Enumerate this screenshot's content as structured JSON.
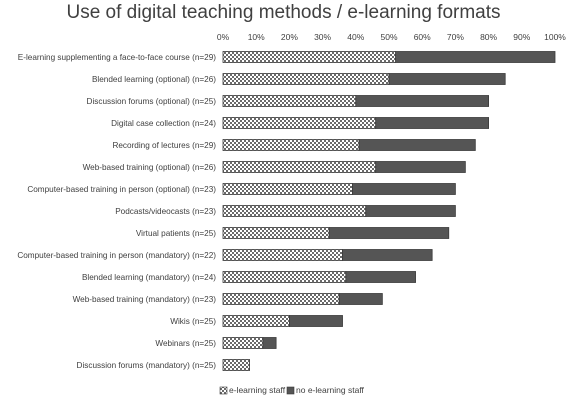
{
  "chart_data": {
    "type": "bar",
    "orientation": "horizontal",
    "stacked": true,
    "title": "Use of digital teaching methods / e-learning formats",
    "xlabel": "",
    "ylabel": "",
    "x_ticks": [
      "0%",
      "10%",
      "20%",
      "30%",
      "40%",
      "50%",
      "60%",
      "70%",
      "80%",
      "90%",
      "100%"
    ],
    "xlim": [
      0,
      100
    ],
    "grid": false,
    "legend_position": "bottom",
    "categories": [
      "E-learning supplementing a face-to-face course (n=29)",
      "Blended learning (optional) (n=26)",
      "Discussion forums (optional) (n=25)",
      "Digital case collection (n=24)",
      "Recording of lectures (n=29)",
      "Web-based training (optional) (n=26)",
      "Computer-based training in person (optional) (n=23)",
      "Podcasts/videocasts (n=23)",
      "Virtual patients (n=25)",
      "Computer-based training in person (mandatory) (n=22)",
      "Blended learning (mandatory) (n=24)",
      "Web-based training (mandatory) (n=23)",
      "Wikis (n=25)",
      "Webinars (n=25)",
      "Discussion forums (mandatory) (n=25)"
    ],
    "series": [
      {
        "name": "e-learning staff",
        "pattern": "checkered",
        "values": [
          52,
          50,
          40,
          46,
          41,
          46,
          39,
          43,
          32,
          36,
          37,
          35,
          20,
          12,
          8
        ]
      },
      {
        "name": "no e-learning staff",
        "color": "#555555",
        "values": [
          48,
          35,
          40,
          34,
          35,
          27,
          31,
          27,
          36,
          27,
          21,
          13,
          16,
          4,
          0
        ]
      }
    ]
  }
}
